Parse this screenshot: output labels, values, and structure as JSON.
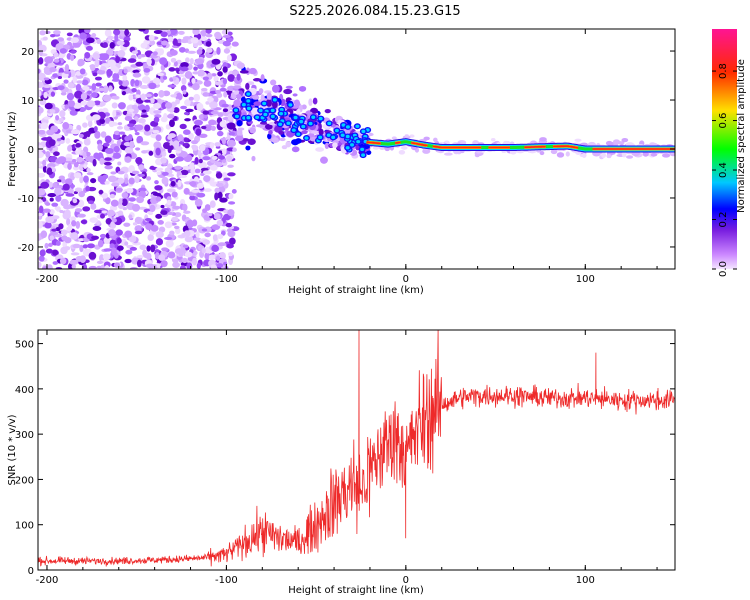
{
  "title": "S225.2026.084.15.23.G15",
  "colors": {
    "snr_line": "#ee2a2a",
    "axis": "#000000",
    "spectrum_bg": "#ffffff"
  },
  "chart_data": [
    {
      "type": "heatmap",
      "xlabel": "Height of straight line (km)",
      "ylabel": "Frequency (Hz)",
      "xlim": [
        -205,
        150
      ],
      "ylim": [
        -24.5,
        24.5
      ],
      "xticks": [
        -200,
        -100,
        0,
        100
      ],
      "xtick_labels": [
        "-200",
        "-100",
        "0",
        "100"
      ],
      "yticks": [
        -20,
        -10,
        0,
        10,
        20
      ],
      "ytick_labels": [
        "-20",
        "-10",
        "0",
        "10",
        "20"
      ],
      "colorbar": {
        "label": "Normalized spectral amplitude",
        "range": [
          0,
          0.97
        ],
        "ticks": [
          0.0,
          0.2,
          0.4,
          0.6,
          0.8
        ],
        "tick_labels": [
          "0.0",
          "0.2",
          "0.4",
          "0.6",
          "0.8"
        ],
        "colormap": [
          "#ffffff",
          "#cc88ff",
          "#7a1fe0",
          "#0000ff",
          "#00c8ff",
          "#00ff00",
          "#ffd200",
          "#ff2200",
          "#ff00aa"
        ]
      },
      "description_points": {
        "noise_region_x": [
          -205,
          -95
        ],
        "transition_x": [
          -95,
          -20
        ],
        "carrier_line_x": [
          -20,
          150
        ],
        "carrier_center_hz": [
          {
            "x": -95,
            "y": 10
          },
          {
            "x": -80,
            "y": 8
          },
          {
            "x": -60,
            "y": 6
          },
          {
            "x": -40,
            "y": 3
          },
          {
            "x": -25,
            "y": 1.5
          },
          {
            "x": -10,
            "y": 1
          },
          {
            "x": 0,
            "y": 1.5
          },
          {
            "x": 10,
            "y": 0.8
          },
          {
            "x": 20,
            "y": 0.3
          },
          {
            "x": 60,
            "y": 0.3
          },
          {
            "x": 90,
            "y": 0.6
          },
          {
            "x": 100,
            "y": 0
          },
          {
            "x": 150,
            "y": 0
          }
        ]
      }
    },
    {
      "type": "line",
      "xlabel": "Height of straight line (km)",
      "ylabel": "SNR (10 * v/v)",
      "xlim": [
        -205,
        150
      ],
      "ylim": [
        0,
        530
      ],
      "xticks": [
        -200,
        -100,
        0,
        100
      ],
      "xtick_labels": [
        "-200",
        "-100",
        "0",
        "100"
      ],
      "yticks": [
        0,
        100,
        200,
        300,
        400,
        500
      ],
      "ytick_labels": [
        "0",
        "100",
        "200",
        "300",
        "400",
        "500"
      ],
      "series": [
        {
          "name": "SNR",
          "x": [
            -205,
            -180,
            -160,
            -140,
            -120,
            -110,
            -100,
            -90,
            -80,
            -70,
            -60,
            -50,
            -40,
            -30,
            -25,
            -20,
            -15,
            -10,
            -5,
            0,
            5,
            10,
            15,
            20,
            30,
            40,
            60,
            80,
            100,
            120,
            150
          ],
          "y": [
            20,
            20,
            20,
            22,
            25,
            28,
            35,
            60,
            85,
            70,
            60,
            100,
            150,
            190,
            170,
            220,
            250,
            280,
            300,
            250,
            300,
            330,
            350,
            365,
            380,
            385,
            385,
            380,
            380,
            375,
            375
          ],
          "spikes": [
            {
              "x": -26,
              "y": 530
            },
            {
              "x": 106,
              "y": 480
            },
            {
              "x": 0,
              "y": 70
            }
          ]
        }
      ]
    }
  ]
}
